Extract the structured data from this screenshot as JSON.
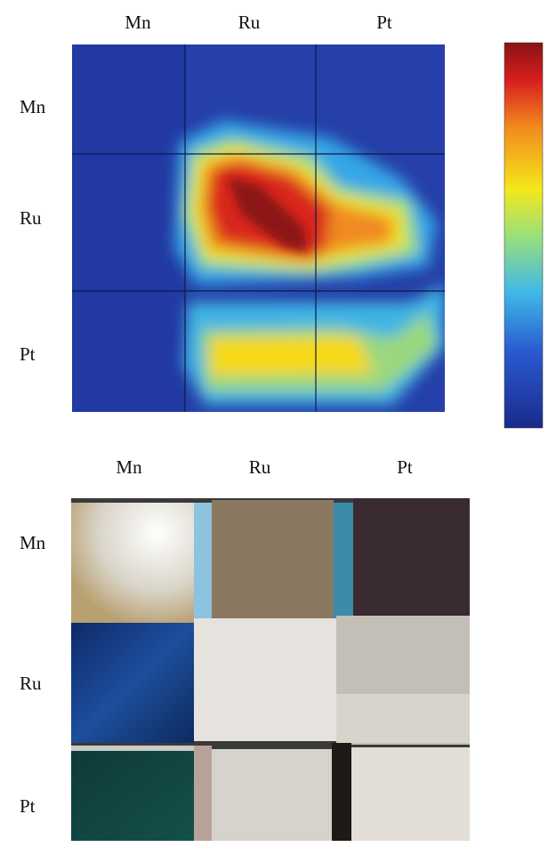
{
  "heatmap": {
    "columns": [
      "Mn",
      "Ru",
      "Pt"
    ],
    "rows": [
      "Mn",
      "Ru",
      "Pt"
    ]
  },
  "photo": {
    "columns": [
      "Mn",
      "Ru",
      "Pt"
    ],
    "rows": [
      "Mn",
      "Ru",
      "Pt"
    ]
  }
}
